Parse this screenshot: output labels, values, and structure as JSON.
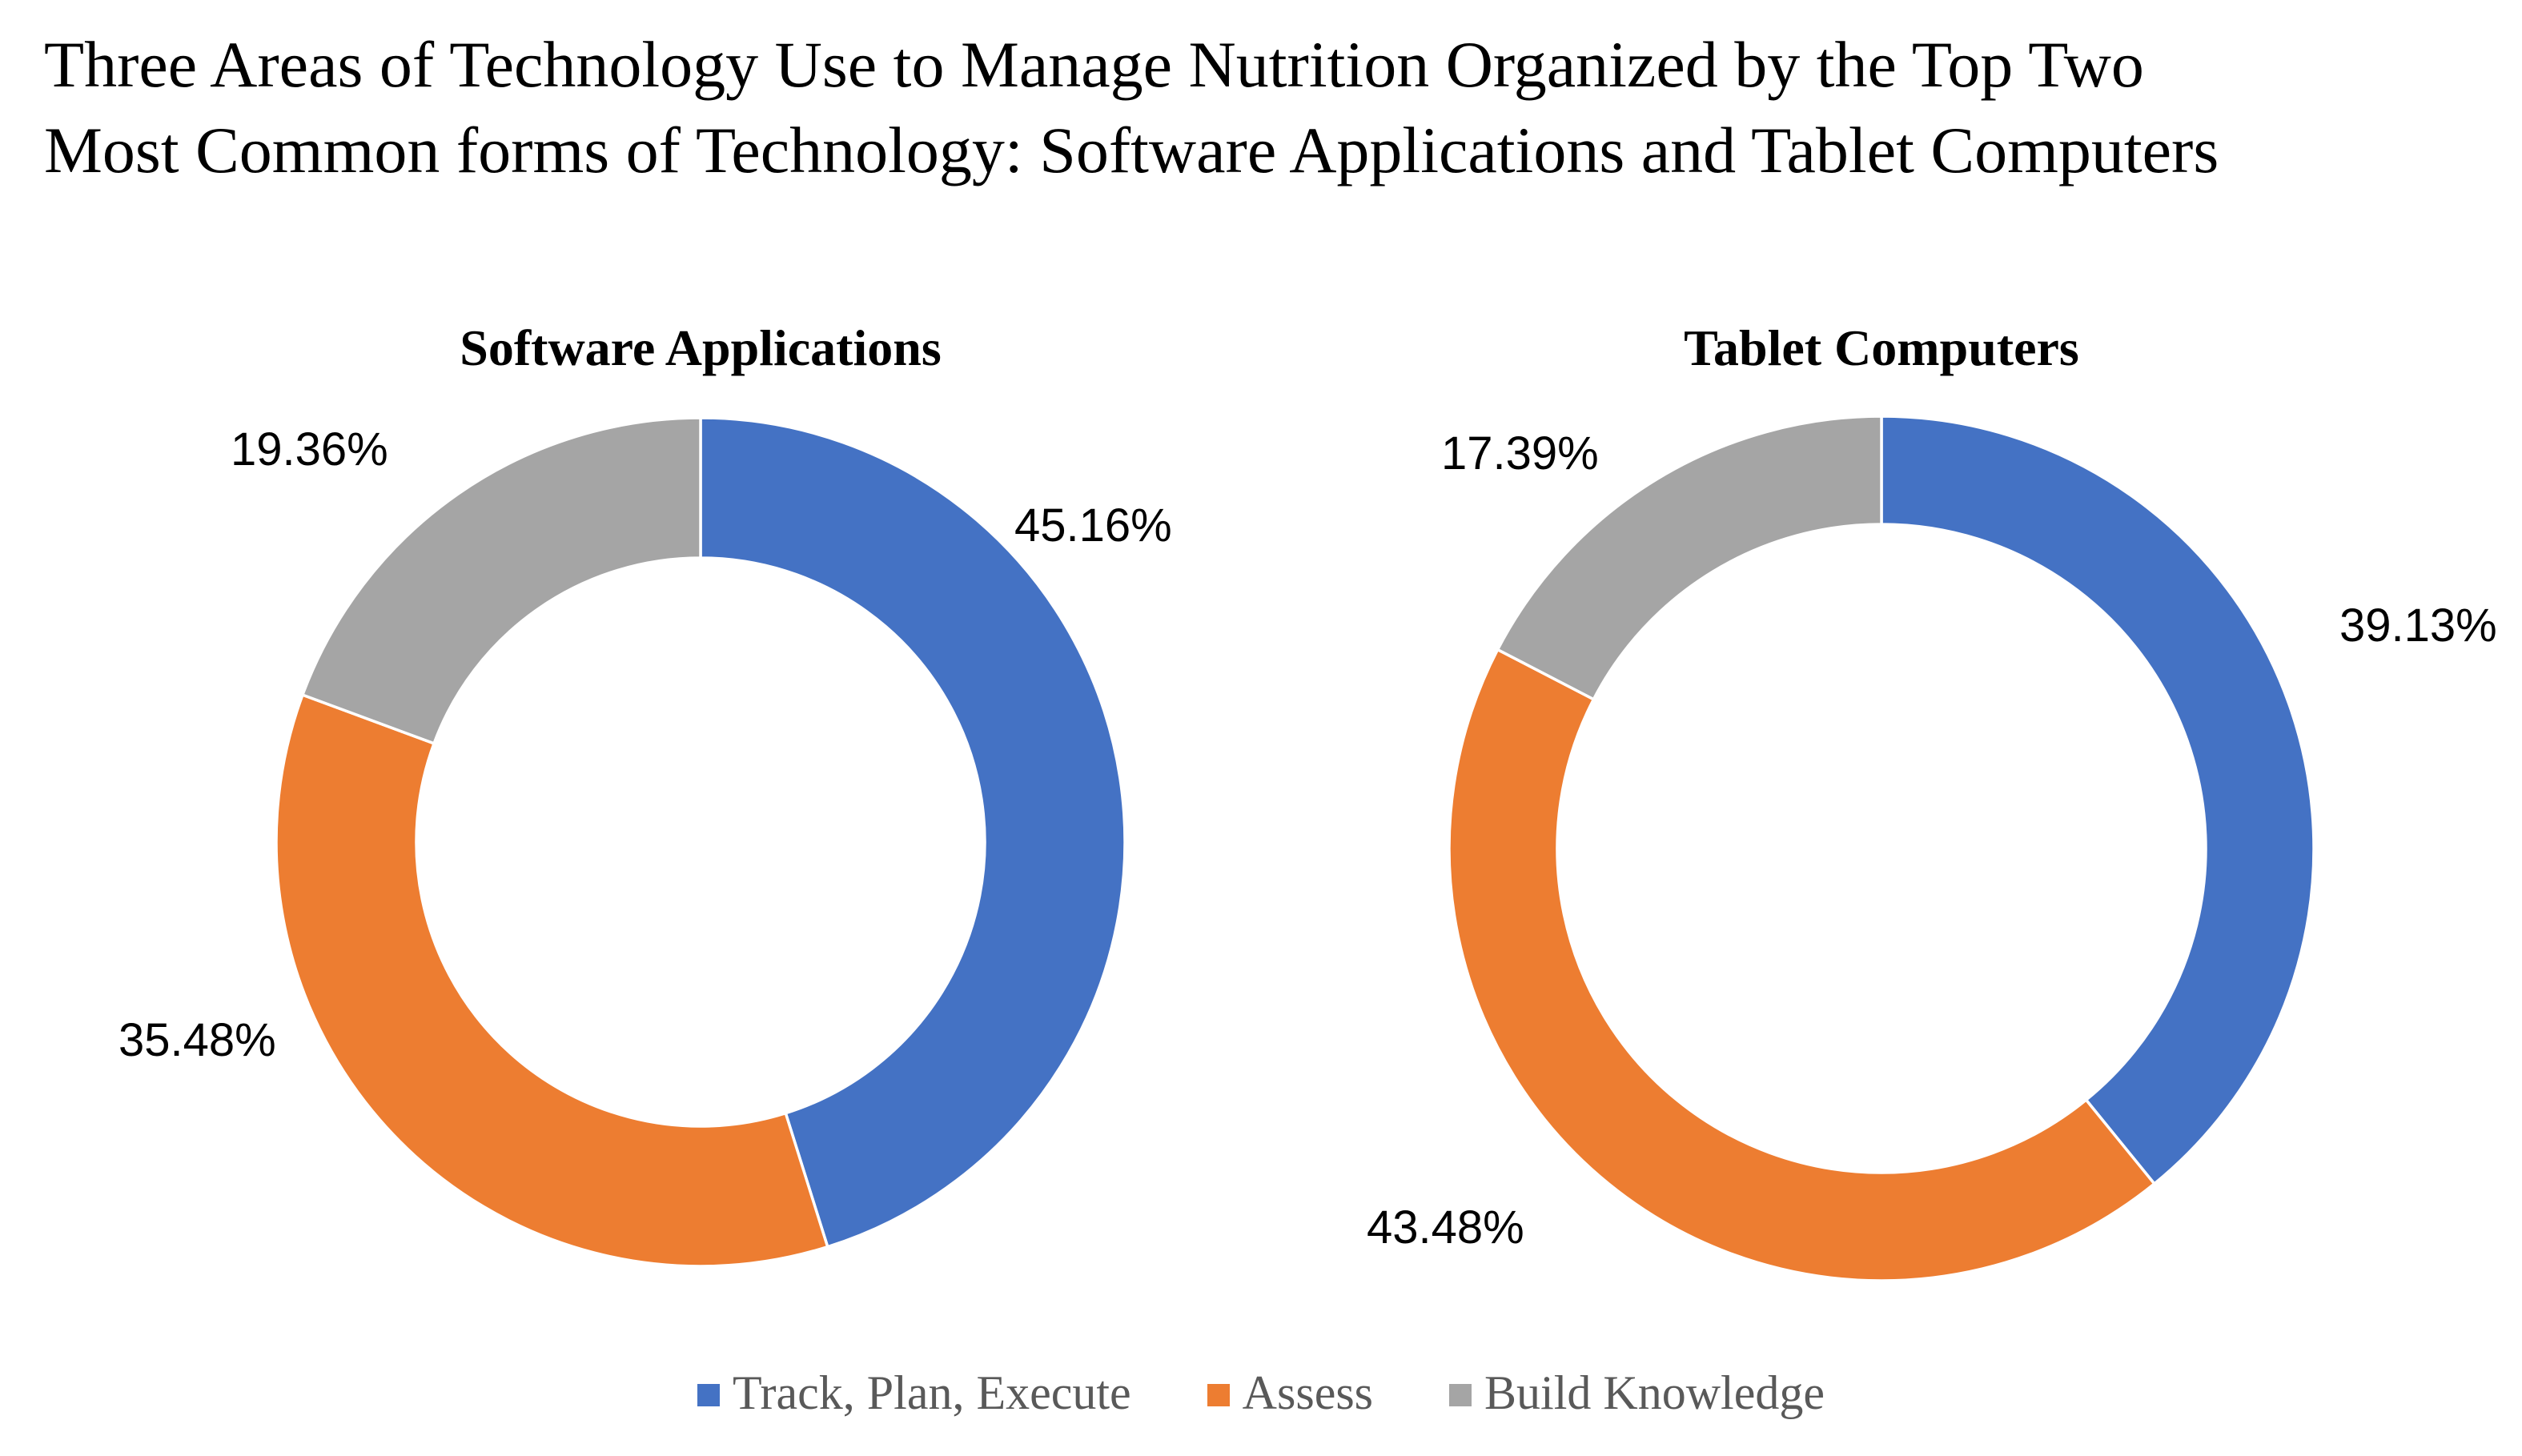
{
  "title": {
    "line1": "Three Areas of Technology Use to Manage Nutrition Organized by the Top Two",
    "line2": "Most Common forms of Technology: Software Applications and Tablet Computers"
  },
  "legend": {
    "position": "bottom",
    "items": [
      {
        "label": "Track, Plan, Execute",
        "color": "#4472C4"
      },
      {
        "label": "Assess",
        "color": "#ED7D31"
      },
      {
        "label": "Build Knowledge",
        "color": "#A5A5A5"
      }
    ]
  },
  "colors": {
    "blue": "#4472C4",
    "orange": "#ED7D31",
    "gray": "#A5A5A5",
    "separator": "#FFFFFF",
    "legend_text": "#595959",
    "title_text": "#000000"
  },
  "chart_data": [
    {
      "type": "pie",
      "subtype": "donut",
      "title": "Software Applications",
      "categories": [
        "Track, Plan, Execute",
        "Assess",
        "Build Knowledge"
      ],
      "values": [
        45.16,
        35.48,
        19.36
      ],
      "labels": [
        "45.16%",
        "35.48%",
        "19.36%"
      ],
      "colors": [
        "#4472C4",
        "#ED7D31",
        "#A5A5A5"
      ],
      "start_angle_deg": 0,
      "direction": "clockwise",
      "hole_ratio": 0.67,
      "legend_position": "bottom"
    },
    {
      "type": "pie",
      "subtype": "donut",
      "title": "Tablet Computers",
      "categories": [
        "Track, Plan, Execute",
        "Assess",
        "Build Knowledge"
      ],
      "values": [
        39.13,
        43.48,
        17.39
      ],
      "labels": [
        "39.13%",
        "43.48%",
        "17.39%"
      ],
      "colors": [
        "#4472C4",
        "#ED7D31",
        "#A5A5A5"
      ],
      "start_angle_deg": 0,
      "direction": "clockwise",
      "hole_ratio": 0.75,
      "legend_position": "bottom"
    }
  ]
}
